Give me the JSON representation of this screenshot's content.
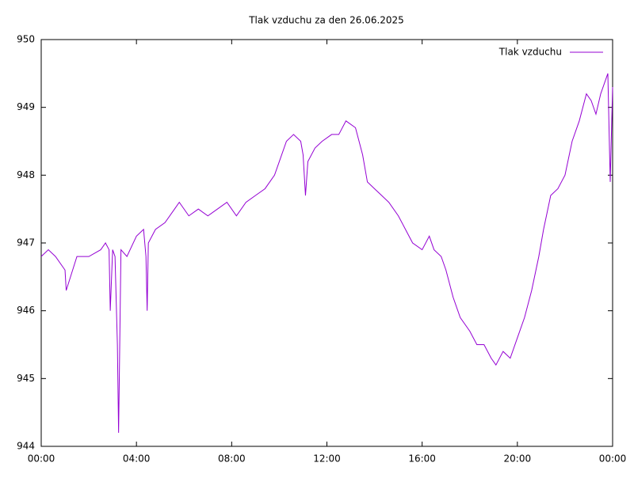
{
  "chart_data": {
    "type": "line",
    "title": "Tlak vzduchu za den 26.06.2025",
    "legend": "top-right",
    "grid": false,
    "xlim": [
      0,
      24
    ],
    "xticks": [
      {
        "value": 0,
        "label": "00:00"
      },
      {
        "value": 4,
        "label": "04:00"
      },
      {
        "value": 8,
        "label": "08:00"
      },
      {
        "value": 12,
        "label": "12:00"
      },
      {
        "value": 16,
        "label": "16:00"
      },
      {
        "value": 20,
        "label": "20:00"
      },
      {
        "value": 24,
        "label": "00:00"
      }
    ],
    "ylim": [
      944,
      950
    ],
    "yticks": [
      944,
      945,
      946,
      947,
      948,
      949,
      950
    ],
    "x": [
      0,
      0.3,
      0.6,
      1.0,
      1.05,
      1.5,
      2.0,
      2.5,
      2.7,
      2.85,
      2.9,
      3.0,
      3.1,
      3.2,
      3.25,
      3.35,
      3.6,
      4.0,
      4.3,
      4.4,
      4.45,
      4.5,
      4.8,
      5.2,
      5.6,
      5.8,
      6.2,
      6.6,
      7.0,
      7.4,
      7.8,
      8.2,
      8.6,
      9.0,
      9.4,
      9.8,
      10.0,
      10.3,
      10.6,
      10.9,
      11.0,
      11.1,
      11.2,
      11.5,
      11.8,
      12.2,
      12.5,
      12.8,
      13.2,
      13.5,
      13.7,
      14.0,
      14.3,
      14.6,
      15.0,
      15.3,
      15.6,
      16.0,
      16.3,
      16.5,
      16.8,
      17.0,
      17.3,
      17.6,
      18.0,
      18.3,
      18.6,
      18.9,
      19.1,
      19.4,
      19.7,
      20.0,
      20.3,
      20.6,
      20.9,
      21.1,
      21.4,
      21.7,
      22.0,
      22.3,
      22.6,
      22.9,
      23.1,
      23.3,
      23.5,
      23.7,
      23.8,
      23.9,
      24.0
    ],
    "series": [
      {
        "name": "Tlak vzduchu",
        "color": "#9400d3",
        "values": [
          946.8,
          946.9,
          946.8,
          946.6,
          946.3,
          946.8,
          946.8,
          946.9,
          947.0,
          946.9,
          946.0,
          946.9,
          946.8,
          945.5,
          944.2,
          946.9,
          946.8,
          947.1,
          947.2,
          946.8,
          946.0,
          947.0,
          947.2,
          947.3,
          947.5,
          947.6,
          947.4,
          947.5,
          947.4,
          947.5,
          947.6,
          947.4,
          947.6,
          947.7,
          947.8,
          948.0,
          948.2,
          948.5,
          948.6,
          948.5,
          948.3,
          947.7,
          948.2,
          948.4,
          948.5,
          948.6,
          948.6,
          948.8,
          948.7,
          948.3,
          947.9,
          947.8,
          947.7,
          947.6,
          947.4,
          947.2,
          947.0,
          946.9,
          947.1,
          946.9,
          946.8,
          946.6,
          946.2,
          945.9,
          945.7,
          945.5,
          945.5,
          945.3,
          945.2,
          945.4,
          945.3,
          945.6,
          945.9,
          946.3,
          946.8,
          947.2,
          947.7,
          947.8,
          948.0,
          948.5,
          948.8,
          949.2,
          949.1,
          948.9,
          949.2,
          949.4,
          949.5,
          947.9,
          949.3
        ]
      }
    ]
  }
}
